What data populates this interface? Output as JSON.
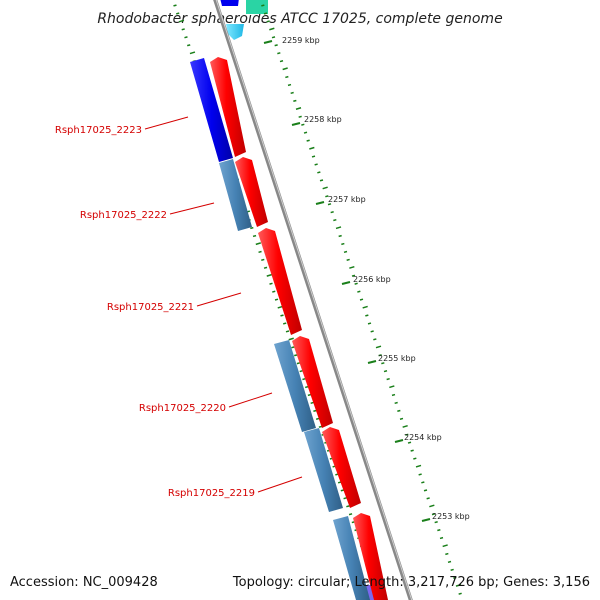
{
  "title": "Rhodobacter sphaeroides ATCC 17025, complete genome",
  "ruler": [
    {
      "label": "2259 kbp"
    },
    {
      "label": "2258 kbp"
    },
    {
      "label": "2257 kbp"
    },
    {
      "label": "2256 kbp"
    },
    {
      "label": "2255 kbp"
    },
    {
      "label": "2254 kbp"
    },
    {
      "label": "2253 kbp"
    }
  ],
  "genes": [
    {
      "label": "Rsph17025_2223"
    },
    {
      "label": "Rsph17025_2222"
    },
    {
      "label": "Rsph17025_2221"
    },
    {
      "label": "Rsph17025_2220"
    },
    {
      "label": "Rsph17025_2219"
    }
  ],
  "colors": {
    "forward_cds": "#ff0000",
    "reverse_blue": "#0000ee",
    "reverse_steel": "#4682b4",
    "backbone": "#888888",
    "tick": "#1a7f1a",
    "gene_label": "#d40000"
  },
  "footer": {
    "accession": "Accession: NC_009428",
    "stats": "Topology: circular; Length: 3,217,726 bp; Genes: 3,156"
  }
}
